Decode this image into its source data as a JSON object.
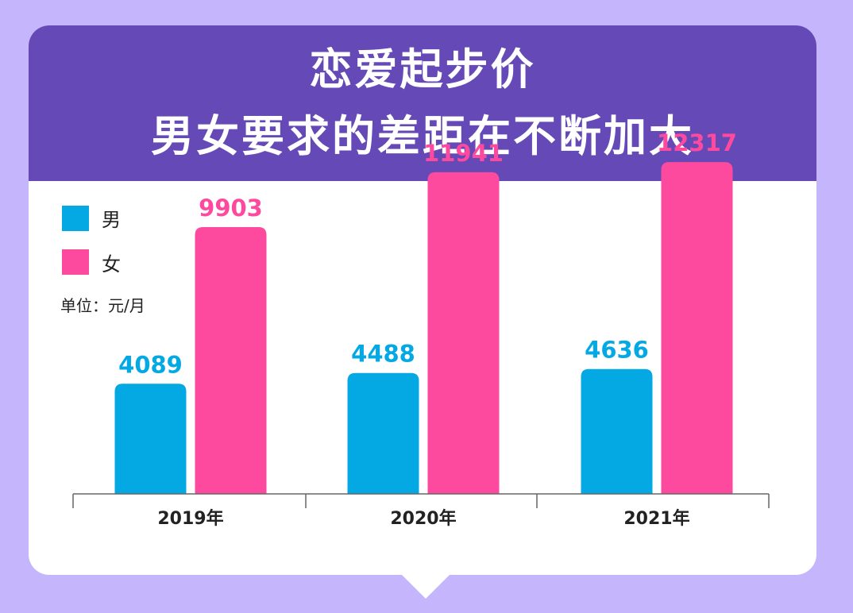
{
  "colors": {
    "male": "#04a9e3",
    "female": "#fd4a9e",
    "header": "#6549b6",
    "background": "#c4b5fd"
  },
  "title": {
    "line1": "恋爱起步价",
    "line2": "男女要求的差距在不断加大"
  },
  "legend": {
    "male": "男",
    "female": "女"
  },
  "unit": "单位：元/月",
  "chart_data": {
    "type": "bar",
    "categories": [
      "2019年",
      "2020年",
      "2021年"
    ],
    "series": [
      {
        "name": "男",
        "values": [
          4089,
          4488,
          4636
        ]
      },
      {
        "name": "女",
        "values": [
          9903,
          11941,
          12317
        ]
      }
    ],
    "ylim": [
      0,
      14000
    ],
    "grid": false,
    "legend_position": "top-left"
  }
}
